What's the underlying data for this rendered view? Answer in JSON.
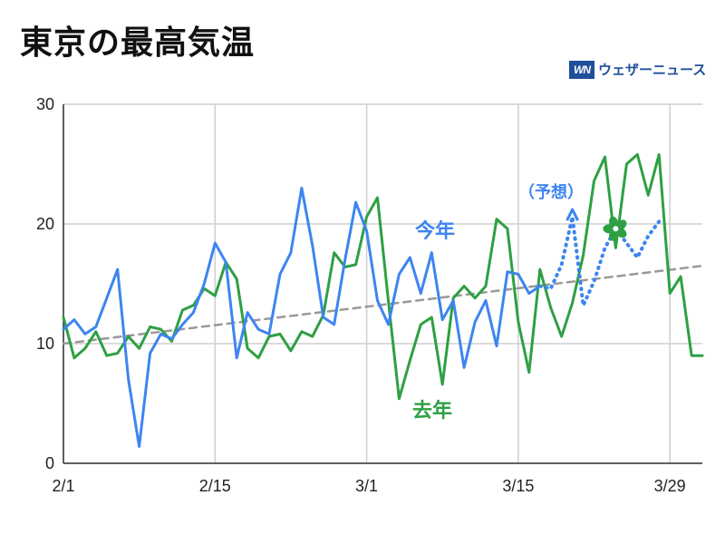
{
  "title": "東京の最高気温",
  "brand": {
    "logo": "WN",
    "name": "ウェザーニュース"
  },
  "chart_data": {
    "type": "line",
    "title": "東京の最高気温",
    "ylim": [
      0,
      30
    ],
    "yticks": [
      0,
      10,
      20,
      30
    ],
    "xlim": [
      1,
      60
    ],
    "xticks": [
      {
        "day": 1,
        "label": "2/1"
      },
      {
        "day": 15,
        "label": "2/15"
      },
      {
        "day": 29,
        "label": "3/1"
      },
      {
        "day": 43,
        "label": "3/15"
      },
      {
        "day": 57,
        "label": "3/29"
      }
    ],
    "grid": true,
    "colors": {
      "this_year": "#3d85f0",
      "last_year": "#2ea043",
      "normal": "#999999",
      "forecast": "#3d85f0"
    },
    "annotations": {
      "this_year_label": "今年",
      "last_year_label": "去年",
      "forecast_label": "（予想）",
      "sakura_icon": "cherry-blossom-icon"
    },
    "series": [
      {
        "key": "this_year",
        "style": "solid",
        "x": [
          1,
          2,
          3,
          4,
          5,
          6,
          7,
          8,
          9,
          10,
          11,
          12,
          13,
          14,
          15,
          16,
          17,
          18,
          19,
          20,
          21,
          22,
          23,
          24,
          25,
          26,
          27,
          28,
          29,
          30,
          31,
          32,
          33,
          34,
          35,
          36,
          37,
          38,
          39,
          40,
          41,
          42,
          43,
          44,
          45
        ],
        "values": [
          11.2,
          12.0,
          10.8,
          11.4,
          13.8,
          16.2,
          7.0,
          1.4,
          9.2,
          10.8,
          10.4,
          11.6,
          12.6,
          15.0,
          18.4,
          16.8,
          8.8,
          12.6,
          11.2,
          10.8,
          15.8,
          17.6,
          23.0,
          18.2,
          12.2,
          11.6,
          17.0,
          21.8,
          19.4,
          13.6,
          11.6,
          15.8,
          17.2,
          14.2,
          17.6,
          12.0,
          13.6,
          8.0,
          11.8,
          13.6,
          9.8,
          16.0,
          15.8,
          14.2,
          14.8
        ]
      },
      {
        "key": "forecast",
        "style": "dotted",
        "x": [
          45,
          46,
          47,
          48,
          49,
          50,
          51,
          52,
          53,
          54,
          55,
          56
        ],
        "values": [
          14.8,
          14.6,
          16.6,
          20.6,
          13.2,
          15.2,
          18.0,
          19.6,
          18.4,
          17.2,
          19.0,
          20.2
        ]
      },
      {
        "key": "last_year",
        "style": "solid",
        "x": [
          1,
          2,
          3,
          4,
          5,
          6,
          7,
          8,
          9,
          10,
          11,
          12,
          13,
          14,
          15,
          16,
          17,
          18,
          19,
          20,
          21,
          22,
          23,
          24,
          25,
          26,
          27,
          28,
          29,
          30,
          31,
          32,
          33,
          34,
          35,
          36,
          37,
          38,
          39,
          40,
          41,
          42,
          43,
          44,
          45,
          46,
          47,
          48,
          49,
          50,
          51,
          52,
          53,
          54,
          55,
          56,
          57,
          58,
          59,
          60
        ],
        "values": [
          12.2,
          8.8,
          9.6,
          11.0,
          9.0,
          9.2,
          10.6,
          9.6,
          11.4,
          11.2,
          10.2,
          12.8,
          13.2,
          14.6,
          14.0,
          16.8,
          15.4,
          9.6,
          8.8,
          10.6,
          10.8,
          9.4,
          11.0,
          10.6,
          12.4,
          17.6,
          16.4,
          16.6,
          20.6,
          22.2,
          13.6,
          5.4,
          8.6,
          11.6,
          12.2,
          6.6,
          13.8,
          14.8,
          13.8,
          14.8,
          20.4,
          19.6,
          11.8,
          7.6,
          16.2,
          13.0,
          10.6,
          13.4,
          17.4,
          23.6,
          25.6,
          18.0,
          25.0,
          25.8,
          22.4,
          25.8,
          14.2,
          15.6,
          9.0,
          9.0
        ]
      },
      {
        "key": "normal",
        "style": "dashed",
        "x": [
          1,
          60
        ],
        "values": [
          10.0,
          16.5
        ]
      }
    ]
  }
}
